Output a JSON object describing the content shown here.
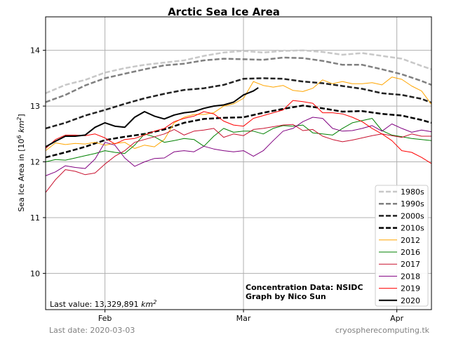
{
  "chart_data": {
    "type": "line",
    "title": "Arctic Sea Ice Area",
    "ylabel_prefix": "Sea Ice Area in [10",
    "ylabel_exp": "6",
    "ylabel_unit": " km",
    "ylabel_unit_exp": "2",
    "ylabel_suffix": "]",
    "x_unit": "day of year",
    "xlim": [
      20,
      98
    ],
    "ylim": [
      9.35,
      14.6
    ],
    "x_ticks": [
      {
        "value": 32,
        "label": "Feb"
      },
      {
        "value": 60,
        "label": "Mar"
      },
      {
        "value": 91,
        "label": "Apr"
      }
    ],
    "y_ticks": [
      10,
      11,
      12,
      13,
      14
    ],
    "grid": true,
    "legend_position": "lower-right",
    "annotation_last_value": "Last value: 13,329,891 ",
    "annotation_last_value_unit": "km",
    "annotation_last_value_exp": "2",
    "credit_line1": "Concentration Data: NSIDC",
    "credit_line2": "Graph by Nico Sun",
    "series": [
      {
        "name": "1980s",
        "color": "#c8c8c8",
        "style": "dashed",
        "width": 2.5,
        "x": [
          20,
          24,
          28,
          32,
          36,
          40,
          44,
          48,
          52,
          56,
          60,
          64,
          68,
          72,
          76,
          80,
          84,
          88,
          92,
          96,
          98
        ],
        "y": [
          13.23,
          13.38,
          13.47,
          13.6,
          13.68,
          13.74,
          13.78,
          13.82,
          13.9,
          13.96,
          13.99,
          13.96,
          13.99,
          14.0,
          13.97,
          13.92,
          13.95,
          13.9,
          13.85,
          13.72,
          13.66
        ]
      },
      {
        "name": "1990s",
        "color": "#808080",
        "style": "dashed",
        "width": 2.5,
        "x": [
          20,
          24,
          28,
          32,
          36,
          40,
          44,
          48,
          52,
          56,
          60,
          64,
          68,
          72,
          76,
          80,
          84,
          88,
          92,
          96,
          98
        ],
        "y": [
          13.07,
          13.2,
          13.37,
          13.5,
          13.58,
          13.66,
          13.73,
          13.76,
          13.82,
          13.85,
          13.84,
          13.83,
          13.87,
          13.86,
          13.81,
          13.74,
          13.74,
          13.66,
          13.57,
          13.45,
          13.38
        ]
      },
      {
        "name": "2000s",
        "color": "#222222",
        "style": "dashed",
        "width": 2.5,
        "x": [
          20,
          24,
          28,
          32,
          36,
          40,
          44,
          48,
          52,
          56,
          60,
          64,
          68,
          72,
          76,
          80,
          84,
          88,
          92,
          96,
          98
        ],
        "y": [
          12.6,
          12.7,
          12.83,
          12.93,
          13.04,
          13.14,
          13.22,
          13.29,
          13.32,
          13.38,
          13.49,
          13.5,
          13.49,
          13.44,
          13.41,
          13.36,
          13.31,
          13.23,
          13.2,
          13.13,
          13.06
        ]
      },
      {
        "name": "2010s",
        "color": "#000000",
        "style": "dashed",
        "width": 2.5,
        "x": [
          20,
          24,
          28,
          32,
          36,
          40,
          44,
          48,
          52,
          56,
          60,
          64,
          68,
          72,
          76,
          80,
          84,
          88,
          92,
          96,
          98
        ],
        "y": [
          12.08,
          12.17,
          12.27,
          12.39,
          12.45,
          12.5,
          12.58,
          12.7,
          12.77,
          12.79,
          12.8,
          12.88,
          12.95,
          13.01,
          12.96,
          12.9,
          12.91,
          12.86,
          12.83,
          12.75,
          12.7
        ]
      },
      {
        "name": "2012",
        "color": "#ffa500",
        "style": "solid",
        "width": 1,
        "x": [
          20,
          22,
          24,
          26,
          28,
          30,
          32,
          34,
          36,
          38,
          40,
          42,
          44,
          46,
          48,
          50,
          52,
          54,
          56,
          58,
          60,
          62,
          64,
          66,
          68,
          70,
          72,
          74,
          76,
          78,
          80,
          82,
          84,
          86,
          88,
          90,
          92,
          94,
          96,
          98
        ],
        "y": [
          12.2,
          12.34,
          12.31,
          12.33,
          12.32,
          12.35,
          12.3,
          12.33,
          12.35,
          12.24,
          12.3,
          12.27,
          12.4,
          12.7,
          12.8,
          12.85,
          12.85,
          12.88,
          13.0,
          13.04,
          13.14,
          13.44,
          13.37,
          13.34,
          13.37,
          13.28,
          13.26,
          13.32,
          13.47,
          13.4,
          13.44,
          13.4,
          13.4,
          13.42,
          13.38,
          13.52,
          13.48,
          13.36,
          13.27,
          13.03
        ]
      },
      {
        "name": "2016",
        "color": "#008000",
        "style": "solid",
        "width": 1,
        "x": [
          20,
          22,
          24,
          26,
          28,
          30,
          32,
          34,
          36,
          38,
          40,
          42,
          44,
          46,
          48,
          50,
          52,
          54,
          56,
          58,
          60,
          62,
          64,
          66,
          68,
          70,
          72,
          74,
          76,
          78,
          80,
          82,
          84,
          86,
          88,
          90,
          92,
          94,
          96,
          98
        ],
        "y": [
          12.0,
          12.04,
          12.03,
          12.07,
          12.11,
          12.15,
          12.2,
          12.17,
          12.15,
          12.3,
          12.5,
          12.45,
          12.35,
          12.38,
          12.42,
          12.4,
          12.28,
          12.46,
          12.6,
          12.53,
          12.55,
          12.55,
          12.5,
          12.6,
          12.65,
          12.64,
          12.66,
          12.52,
          12.5,
          12.48,
          12.6,
          12.7,
          12.74,
          12.78,
          12.56,
          12.48,
          12.45,
          12.42,
          12.4,
          12.38
        ]
      },
      {
        "name": "2017",
        "color": "#c8102e",
        "style": "solid",
        "width": 1,
        "x": [
          20,
          22,
          24,
          26,
          28,
          30,
          32,
          34,
          36,
          38,
          40,
          42,
          44,
          46,
          48,
          50,
          52,
          54,
          56,
          58,
          60,
          62,
          64,
          66,
          68,
          70,
          72,
          74,
          76,
          78,
          80,
          82,
          84,
          86,
          88,
          90,
          92,
          94,
          96,
          98
        ],
        "y": [
          11.45,
          11.68,
          11.86,
          11.83,
          11.77,
          11.8,
          11.96,
          12.1,
          12.2,
          12.35,
          12.4,
          12.45,
          12.5,
          12.58,
          12.48,
          12.55,
          12.57,
          12.6,
          12.44,
          12.5,
          12.47,
          12.58,
          12.6,
          12.63,
          12.66,
          12.67,
          12.56,
          12.58,
          12.46,
          12.4,
          12.36,
          12.39,
          12.43,
          12.47,
          12.5,
          12.47,
          12.44,
          12.5,
          12.46,
          12.46
        ]
      },
      {
        "name": "2018",
        "color": "#800080",
        "style": "solid",
        "width": 1,
        "x": [
          20,
          22,
          24,
          26,
          28,
          30,
          32,
          34,
          36,
          38,
          40,
          42,
          44,
          46,
          48,
          50,
          52,
          54,
          56,
          58,
          60,
          62,
          64,
          66,
          68,
          70,
          72,
          74,
          76,
          78,
          80,
          82,
          84,
          86,
          88,
          90,
          92,
          94,
          96,
          98
        ],
        "y": [
          11.75,
          11.82,
          11.93,
          11.9,
          11.88,
          12.05,
          12.35,
          12.3,
          12.07,
          11.92,
          12.0,
          12.06,
          12.07,
          12.18,
          12.2,
          12.18,
          12.28,
          12.23,
          12.2,
          12.18,
          12.2,
          12.1,
          12.2,
          12.38,
          12.55,
          12.6,
          12.72,
          12.8,
          12.78,
          12.6,
          12.55,
          12.56,
          12.6,
          12.65,
          12.55,
          12.68,
          12.6,
          12.53,
          12.57,
          12.54
        ]
      },
      {
        "name": "2019",
        "color": "#ff0000",
        "style": "solid",
        "width": 1,
        "x": [
          20,
          22,
          24,
          26,
          28,
          30,
          32,
          34,
          36,
          38,
          40,
          42,
          44,
          46,
          48,
          50,
          52,
          54,
          56,
          58,
          60,
          62,
          64,
          66,
          68,
          70,
          72,
          74,
          76,
          78,
          80,
          82,
          84,
          86,
          88,
          90,
          92,
          94,
          96,
          98
        ],
        "y": [
          12.24,
          12.4,
          12.48,
          12.48,
          12.47,
          12.5,
          12.43,
          12.32,
          12.4,
          12.42,
          12.48,
          12.55,
          12.6,
          12.72,
          12.78,
          12.82,
          12.9,
          12.86,
          12.73,
          12.66,
          12.64,
          12.78,
          12.83,
          12.88,
          12.93,
          13.1,
          13.08,
          13.05,
          12.88,
          12.88,
          12.86,
          12.8,
          12.72,
          12.6,
          12.5,
          12.38,
          12.2,
          12.17,
          12.08,
          11.97
        ]
      },
      {
        "name": "2020",
        "color": "#000000",
        "style": "solid",
        "width": 2,
        "x": [
          20,
          22,
          24,
          26,
          28,
          30,
          32,
          34,
          36,
          38,
          40,
          42,
          44,
          46,
          48,
          50,
          52,
          54,
          56,
          58,
          60,
          62,
          63
        ],
        "y": [
          12.27,
          12.37,
          12.46,
          12.46,
          12.48,
          12.62,
          12.7,
          12.64,
          12.62,
          12.8,
          12.9,
          12.82,
          12.77,
          12.84,
          12.88,
          12.9,
          12.96,
          13.0,
          13.02,
          13.07,
          13.2,
          13.27,
          13.33
        ]
      }
    ]
  },
  "footer": {
    "last_date": "Last date: 2020-03-03",
    "site": "cryospherecomputing.tk"
  }
}
